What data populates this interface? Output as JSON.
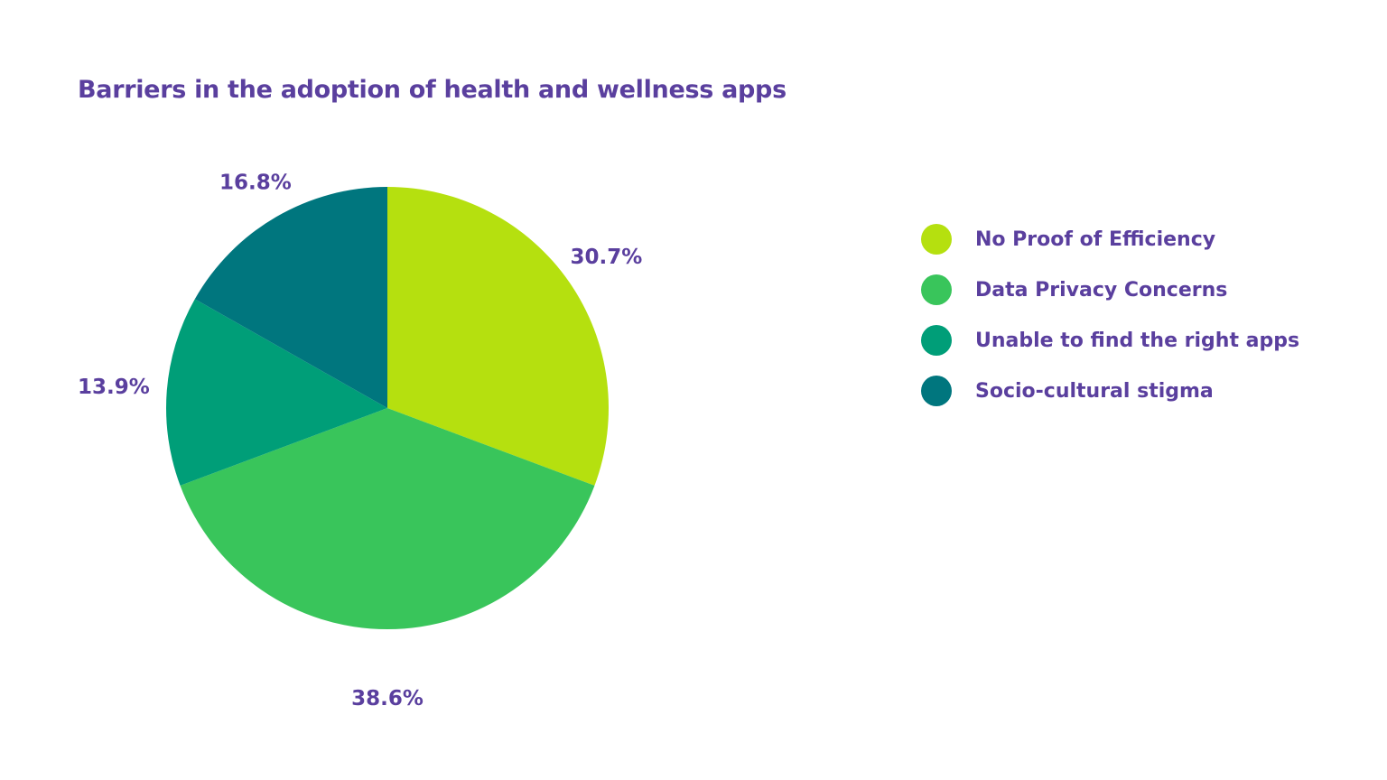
{
  "chart_data": {
    "type": "pie",
    "title": "Barriers in the adoption of health and wellness apps",
    "categories": [
      "No Proof of Efficiency",
      "Data Privacy Concerns",
      "Unable to find the right apps",
      "Socio-cultural stigma"
    ],
    "values": [
      30.7,
      38.6,
      13.9,
      16.8
    ],
    "data_labels": [
      "30.7%",
      "38.6%",
      "13.9%",
      "16.8%"
    ],
    "colors": [
      "#B5E00F",
      "#39C55B",
      "#009E78",
      "#00767E"
    ],
    "start_angle": "12 o'clock, clockwise",
    "legend": "right",
    "text_color": "#5A3F9E"
  }
}
